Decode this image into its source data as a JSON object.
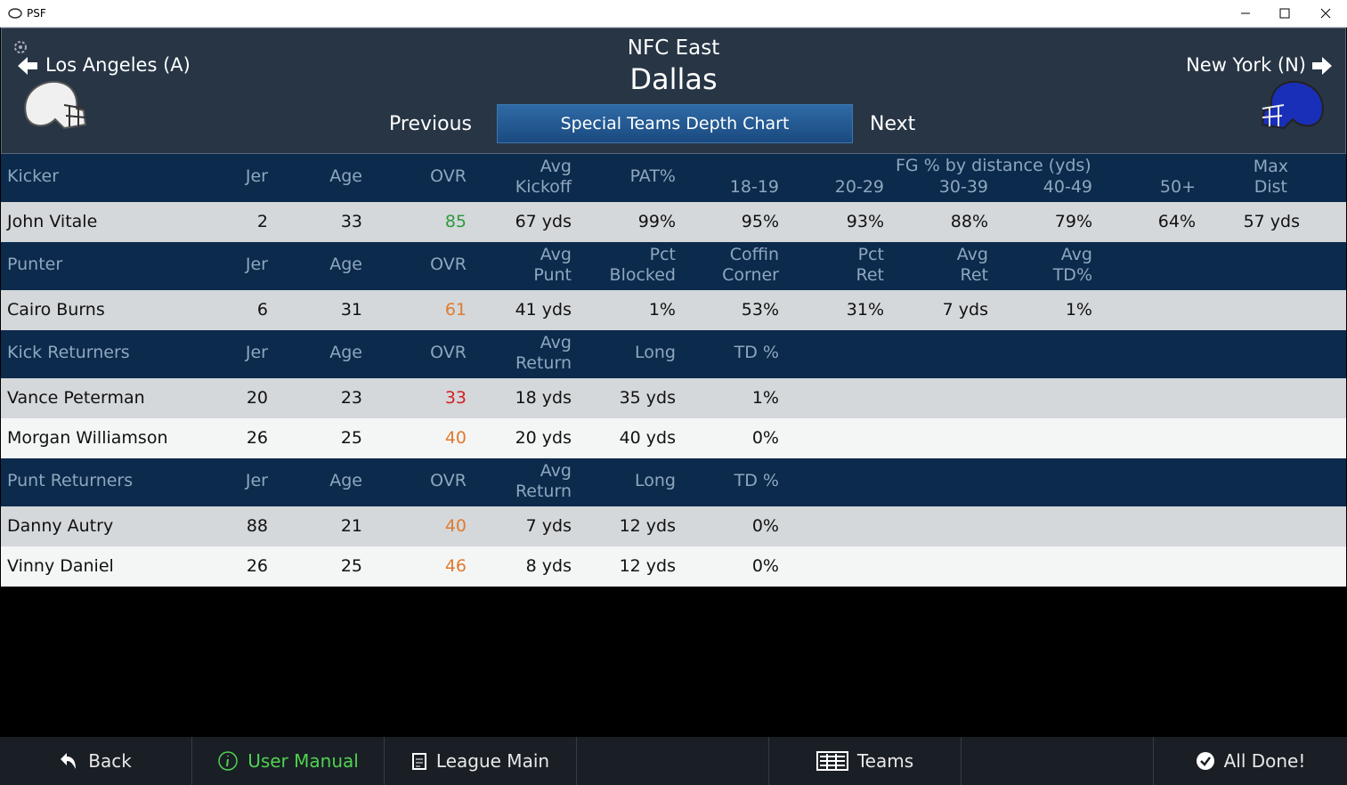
{
  "window": {
    "title": "PSF"
  },
  "header": {
    "prev_team": "Los Angeles (A)",
    "division": "NFC East",
    "team": "Dallas",
    "next_team": "New York (N)",
    "previous": "Previous",
    "tab": "Special Teams Depth Chart",
    "next": "Next"
  },
  "sections": [
    {
      "header": [
        "Kicker",
        "Jer",
        "Age",
        "OVR",
        "Avg\nKickoff",
        "PAT%",
        "18-19",
        "20-29",
        "30-39",
        "40-49",
        "50+",
        "Max\nDist"
      ],
      "group_label": "FG % by distance (yds)",
      "rows": [
        {
          "cells": [
            "John Vitale",
            "2",
            "33",
            "85",
            "67 yds",
            "99%",
            "95%",
            "93%",
            "88%",
            "79%",
            "64%",
            "57 yds"
          ],
          "ovr_color": "#2e9a3e"
        }
      ]
    },
    {
      "header": [
        "Punter",
        "Jer",
        "Age",
        "OVR",
        "Avg\nPunt",
        "Pct\nBlocked",
        "Coffin\nCorner",
        "Pct\nRet",
        "Avg\nRet",
        "Avg\nTD%"
      ],
      "rows": [
        {
          "cells": [
            "Cairo Burns",
            "6",
            "31",
            "61",
            "41 yds",
            "1%",
            "53%",
            "31%",
            "7 yds",
            "1%"
          ],
          "ovr_color": "#e07a30"
        }
      ]
    },
    {
      "header": [
        "Kick Returners",
        "Jer",
        "Age",
        "OVR",
        "Avg\nReturn",
        "Long",
        "TD %"
      ],
      "rows": [
        {
          "cells": [
            "Vance Peterman",
            "20",
            "23",
            "33",
            "18 yds",
            "35 yds",
            "1%"
          ],
          "ovr_color": "#d42020"
        },
        {
          "cells": [
            "Morgan Williamson",
            "26",
            "25",
            "40",
            "20 yds",
            "40 yds",
            "0%"
          ],
          "ovr_color": "#e07a30"
        }
      ]
    },
    {
      "header": [
        "Punt Returners",
        "Jer",
        "Age",
        "OVR",
        "Avg\nReturn",
        "Long",
        "TD %"
      ],
      "rows": [
        {
          "cells": [
            "Danny Autry",
            "88",
            "21",
            "40",
            "7 yds",
            "12 yds",
            "0%"
          ],
          "ovr_color": "#e07a30"
        },
        {
          "cells": [
            "Vinny Daniel",
            "26",
            "25",
            "46",
            "8 yds",
            "12 yds",
            "0%"
          ],
          "ovr_color": "#e07a30"
        }
      ]
    }
  ],
  "footer": [
    "Back",
    "User Manual",
    "League Main",
    "Teams",
    "All Done!"
  ]
}
